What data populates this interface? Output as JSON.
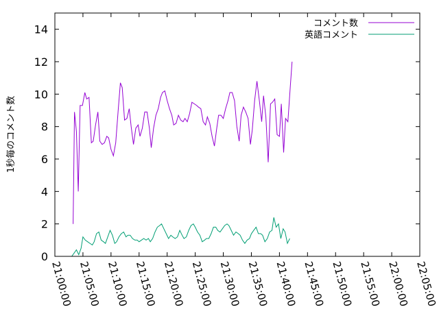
{
  "chart_data": {
    "type": "line",
    "title": "",
    "xlabel": "",
    "ylabel": "1秒毎のコメント数",
    "xlim": [
      "21:00:00",
      "22:05:00"
    ],
    "ylim": [
      0,
      15
    ],
    "x_ticks": [
      "21:00:00",
      "21:05:00",
      "21:10:00",
      "21:15:00",
      "21:20:00",
      "21:25:00",
      "21:30:00",
      "21:35:00",
      "21:40:00",
      "21:45:00",
      "21:50:00",
      "21:55:00",
      "22:00:00",
      "22:05:00"
    ],
    "y_ticks": [
      0,
      2,
      4,
      6,
      8,
      10,
      12,
      14
    ],
    "grid": false,
    "legend_position": "top-right",
    "series": [
      {
        "name": "コメント数",
        "color": "#9400d3",
        "points": [
          [
            "21:03:15",
            2.0
          ],
          [
            "21:03:30",
            8.9
          ],
          [
            "21:03:50",
            7.7
          ],
          [
            "21:04:10",
            4.0
          ],
          [
            "21:04:30",
            9.3
          ],
          [
            "21:04:55",
            9.3
          ],
          [
            "21:05:20",
            10.1
          ],
          [
            "21:05:40",
            9.7
          ],
          [
            "21:06:05",
            9.8
          ],
          [
            "21:06:30",
            7.0
          ],
          [
            "21:06:50",
            7.1
          ],
          [
            "21:07:15",
            8.1
          ],
          [
            "21:07:40",
            8.9
          ],
          [
            "21:08:00",
            7.1
          ],
          [
            "21:08:25",
            6.9
          ],
          [
            "21:08:50",
            7.0
          ],
          [
            "21:09:15",
            7.4
          ],
          [
            "21:09:35",
            7.3
          ],
          [
            "21:10:00",
            6.6
          ],
          [
            "21:10:25",
            6.2
          ],
          [
            "21:10:50",
            7.0
          ],
          [
            "21:11:15",
            8.9
          ],
          [
            "21:11:40",
            10.7
          ],
          [
            "21:12:00",
            10.4
          ],
          [
            "21:12:25",
            8.4
          ],
          [
            "21:12:50",
            8.5
          ],
          [
            "21:13:15",
            9.1
          ],
          [
            "21:13:35",
            8.0
          ],
          [
            "21:14:00",
            6.9
          ],
          [
            "21:14:25",
            7.9
          ],
          [
            "21:14:50",
            8.1
          ],
          [
            "21:15:10",
            7.4
          ],
          [
            "21:15:35",
            7.9
          ],
          [
            "21:16:00",
            8.9
          ],
          [
            "21:16:25",
            8.9
          ],
          [
            "21:16:50",
            7.9
          ],
          [
            "21:17:10",
            6.7
          ],
          [
            "21:17:35",
            7.9
          ],
          [
            "21:18:00",
            8.7
          ],
          [
            "21:18:25",
            9.1
          ],
          [
            "21:18:50",
            9.8
          ],
          [
            "21:19:10",
            10.1
          ],
          [
            "21:19:35",
            10.2
          ],
          [
            "21:20:00",
            9.6
          ],
          [
            "21:20:25",
            9.1
          ],
          [
            "21:20:50",
            8.7
          ],
          [
            "21:21:10",
            8.1
          ],
          [
            "21:21:35",
            8.2
          ],
          [
            "21:22:00",
            8.7
          ],
          [
            "21:22:25",
            8.4
          ],
          [
            "21:22:50",
            8.3
          ],
          [
            "21:23:10",
            8.5
          ],
          [
            "21:23:35",
            8.3
          ],
          [
            "21:24:00",
            8.8
          ],
          [
            "21:24:25",
            9.5
          ],
          [
            "21:24:50",
            9.4
          ],
          [
            "21:25:15",
            9.3
          ],
          [
            "21:25:35",
            9.2
          ],
          [
            "21:26:00",
            9.1
          ],
          [
            "21:26:25",
            8.3
          ],
          [
            "21:26:50",
            8.1
          ],
          [
            "21:27:10",
            8.6
          ],
          [
            "21:27:35",
            8.2
          ],
          [
            "21:28:00",
            7.4
          ],
          [
            "21:28:25",
            6.8
          ],
          [
            "21:28:50",
            7.9
          ],
          [
            "21:29:10",
            8.7
          ],
          [
            "21:29:35",
            8.7
          ],
          [
            "21:30:00",
            8.5
          ],
          [
            "21:30:25",
            9.1
          ],
          [
            "21:30:50",
            9.6
          ],
          [
            "21:31:10",
            10.1
          ],
          [
            "21:31:35",
            10.1
          ],
          [
            "21:32:00",
            9.6
          ],
          [
            "21:32:25",
            8.0
          ],
          [
            "21:32:50",
            7.1
          ],
          [
            "21:33:10",
            8.7
          ],
          [
            "21:33:35",
            9.2
          ],
          [
            "21:34:00",
            8.9
          ],
          [
            "21:34:25",
            8.5
          ],
          [
            "21:34:50",
            6.9
          ],
          [
            "21:35:10",
            7.8
          ],
          [
            "21:35:35",
            9.6
          ],
          [
            "21:36:00",
            10.8
          ],
          [
            "21:36:25",
            9.6
          ],
          [
            "21:36:50",
            8.3
          ],
          [
            "21:37:10",
            9.9
          ],
          [
            "21:37:35",
            8.6
          ],
          [
            "21:38:00",
            5.8
          ],
          [
            "21:38:25",
            9.4
          ],
          [
            "21:38:45",
            9.5
          ],
          [
            "21:39:10",
            9.7
          ],
          [
            "21:39:35",
            7.5
          ],
          [
            "21:40:00",
            7.4
          ],
          [
            "21:40:20",
            9.4
          ],
          [
            "21:40:45",
            6.4
          ],
          [
            "21:41:05",
            8.5
          ],
          [
            "21:41:30",
            8.3
          ],
          [
            "21:41:55",
            10.4
          ],
          [
            "21:42:15",
            12.0
          ]
        ]
      },
      {
        "name": "英語コメント",
        "color": "#009e73",
        "points": [
          [
            "21:03:00",
            0.0
          ],
          [
            "21:03:25",
            0.2
          ],
          [
            "21:03:50",
            0.4
          ],
          [
            "21:04:15",
            0.1
          ],
          [
            "21:04:40",
            0.5
          ],
          [
            "21:05:00",
            1.2
          ],
          [
            "21:05:25",
            1.0
          ],
          [
            "21:05:50",
            0.9
          ],
          [
            "21:06:15",
            0.8
          ],
          [
            "21:06:40",
            0.7
          ],
          [
            "21:07:00",
            0.9
          ],
          [
            "21:07:25",
            1.4
          ],
          [
            "21:07:50",
            1.5
          ],
          [
            "21:08:15",
            1.0
          ],
          [
            "21:08:40",
            0.9
          ],
          [
            "21:09:00",
            0.8
          ],
          [
            "21:09:25",
            1.2
          ],
          [
            "21:09:50",
            1.6
          ],
          [
            "21:10:15",
            1.3
          ],
          [
            "21:10:40",
            0.8
          ],
          [
            "21:11:00",
            0.9
          ],
          [
            "21:11:25",
            1.2
          ],
          [
            "21:11:50",
            1.4
          ],
          [
            "21:12:15",
            1.5
          ],
          [
            "21:12:40",
            1.2
          ],
          [
            "21:13:00",
            1.3
          ],
          [
            "21:13:25",
            1.3
          ],
          [
            "21:13:50",
            1.1
          ],
          [
            "21:14:15",
            1.0
          ],
          [
            "21:14:40",
            1.0
          ],
          [
            "21:15:00",
            0.9
          ],
          [
            "21:15:25",
            1.0
          ],
          [
            "21:15:50",
            1.1
          ],
          [
            "21:16:15",
            1.0
          ],
          [
            "21:16:40",
            1.1
          ],
          [
            "21:17:00",
            0.9
          ],
          [
            "21:17:25",
            1.1
          ],
          [
            "21:17:50",
            1.5
          ],
          [
            "21:18:15",
            1.8
          ],
          [
            "21:18:40",
            1.9
          ],
          [
            "21:19:00",
            2.0
          ],
          [
            "21:19:25",
            1.7
          ],
          [
            "21:19:50",
            1.4
          ],
          [
            "21:20:15",
            1.1
          ],
          [
            "21:20:40",
            1.3
          ],
          [
            "21:21:00",
            1.2
          ],
          [
            "21:21:25",
            1.1
          ],
          [
            "21:21:50",
            1.2
          ],
          [
            "21:22:15",
            1.6
          ],
          [
            "21:22:40",
            1.3
          ],
          [
            "21:23:00",
            1.1
          ],
          [
            "21:23:25",
            1.2
          ],
          [
            "21:23:50",
            1.6
          ],
          [
            "21:24:15",
            1.9
          ],
          [
            "21:24:40",
            2.0
          ],
          [
            "21:25:00",
            1.8
          ],
          [
            "21:25:25",
            1.5
          ],
          [
            "21:25:50",
            1.3
          ],
          [
            "21:26:15",
            0.9
          ],
          [
            "21:26:40",
            1.0
          ],
          [
            "21:27:00",
            1.1
          ],
          [
            "21:27:25",
            1.1
          ],
          [
            "21:27:50",
            1.4
          ],
          [
            "21:28:15",
            1.8
          ],
          [
            "21:28:40",
            1.8
          ],
          [
            "21:29:00",
            1.6
          ],
          [
            "21:29:25",
            1.5
          ],
          [
            "21:29:50",
            1.7
          ],
          [
            "21:30:15",
            1.9
          ],
          [
            "21:30:40",
            2.0
          ],
          [
            "21:31:00",
            1.9
          ],
          [
            "21:31:25",
            1.6
          ],
          [
            "21:31:50",
            1.3
          ],
          [
            "21:32:15",
            1.5
          ],
          [
            "21:32:40",
            1.4
          ],
          [
            "21:33:00",
            1.3
          ],
          [
            "21:33:25",
            1.0
          ],
          [
            "21:33:50",
            0.8
          ],
          [
            "21:34:15",
            1.0
          ],
          [
            "21:34:40",
            1.1
          ],
          [
            "21:35:00",
            1.4
          ],
          [
            "21:35:25",
            1.6
          ],
          [
            "21:35:50",
            1.8
          ],
          [
            "21:36:15",
            1.4
          ],
          [
            "21:36:40",
            1.4
          ],
          [
            "21:37:00",
            1.3
          ],
          [
            "21:37:25",
            0.9
          ],
          [
            "21:37:50",
            1.1
          ],
          [
            "21:38:15",
            1.5
          ],
          [
            "21:38:40",
            1.6
          ],
          [
            "21:39:00",
            2.4
          ],
          [
            "21:39:25",
            1.8
          ],
          [
            "21:39:50",
            2.0
          ],
          [
            "21:40:15",
            1.1
          ],
          [
            "21:40:40",
            1.7
          ],
          [
            "21:41:00",
            1.5
          ],
          [
            "21:41:25",
            0.8
          ],
          [
            "21:41:50",
            1.1
          ]
        ]
      }
    ]
  }
}
